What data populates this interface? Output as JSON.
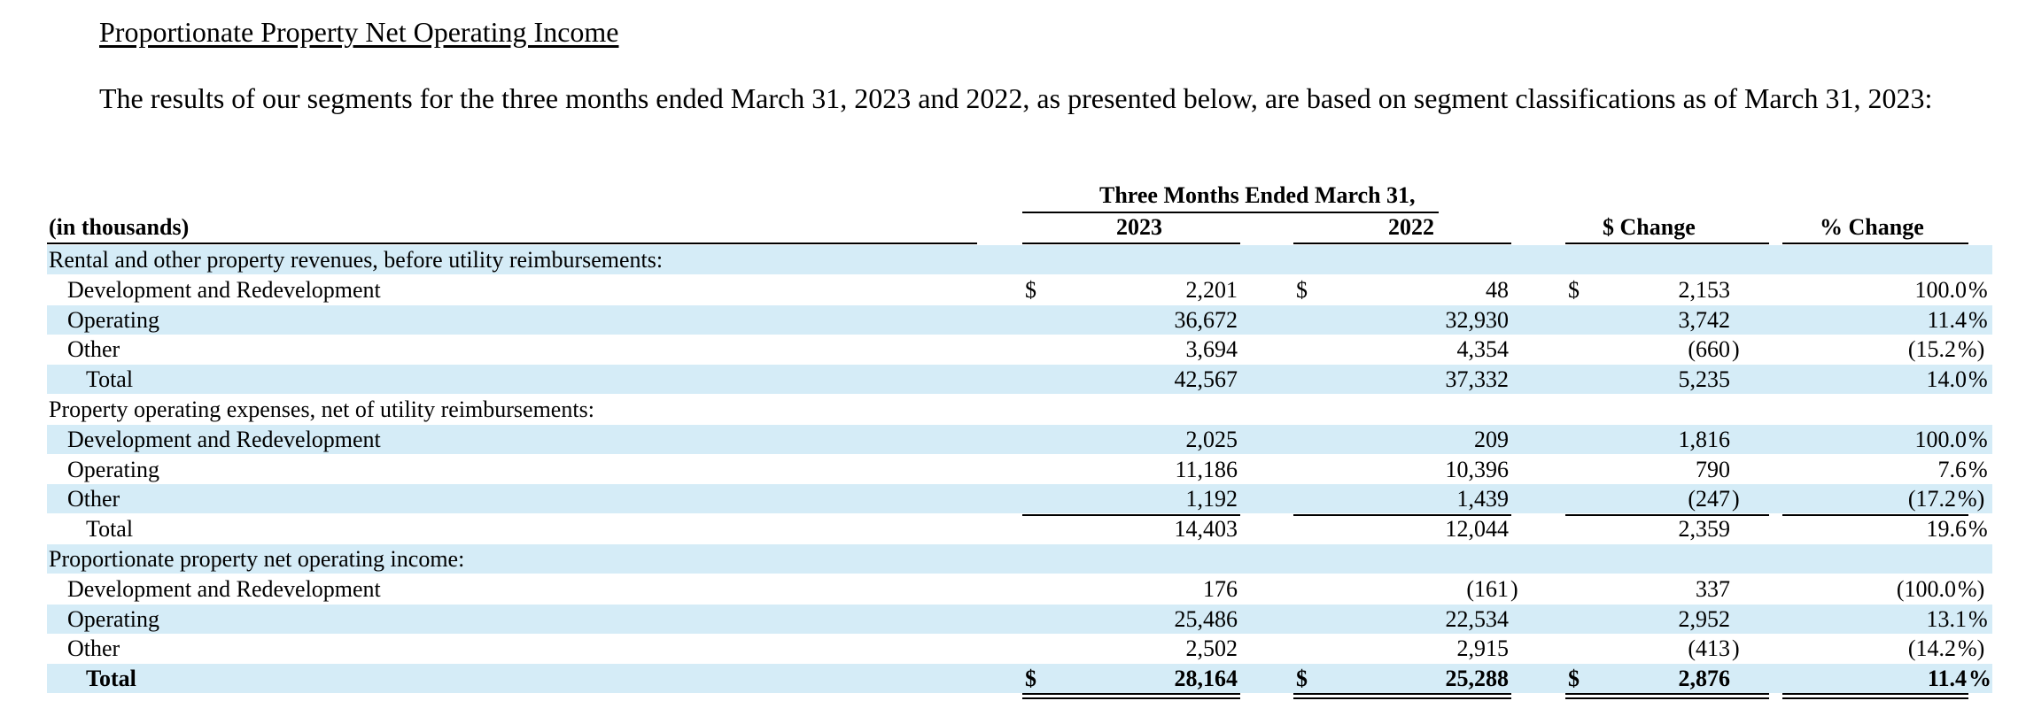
{
  "heading": "Proportionate Property Net Operating Income",
  "intro": "The results of our segments for the three months ended March 31, 2023 and 2022, as presented below, are based on segment classifications as of March 31, 2023:",
  "table": {
    "period_header": "Three Months Ended March 31,",
    "units_label": "(in thousands)",
    "col_2023": "2023",
    "col_2022": "2022",
    "col_dollar_change": "$ Change",
    "col_pct_change": "% Change",
    "currency_symbol": "$",
    "sections": [
      {
        "title": "Rental and other property revenues, before utility reimbursements:",
        "rows": [
          {
            "label": "Development and Redevelopment",
            "v2023": "2,201",
            "v2022": "48",
            "chg": "2,153",
            "pct": "100.0",
            "pct_sign": "%",
            "dollar": true
          },
          {
            "label": "Operating",
            "v2023": "36,672",
            "v2022": "32,930",
            "chg": "3,742",
            "pct": "11.4",
            "pct_sign": "%"
          },
          {
            "label": "Other",
            "v2023": "3,694",
            "v2022": "4,354",
            "chg": "(660",
            "chg_close": ")",
            "pct": "(15.2",
            "pct_sign": "%)"
          }
        ],
        "total": {
          "label": "Total",
          "v2023": "42,567",
          "v2022": "37,332",
          "chg": "5,235",
          "pct": "14.0",
          "pct_sign": "%"
        }
      },
      {
        "title": "Property operating expenses, net of utility reimbursements:",
        "rows": [
          {
            "label": "Development and Redevelopment",
            "v2023": "2,025",
            "v2022": "209",
            "chg": "1,816",
            "pct": "100.0",
            "pct_sign": "%"
          },
          {
            "label": "Operating",
            "v2023": "11,186",
            "v2022": "10,396",
            "chg": "790",
            "pct": "7.6",
            "pct_sign": "%"
          },
          {
            "label": "Other",
            "v2023": "1,192",
            "v2022": "1,439",
            "chg": "(247",
            "chg_close": ")",
            "pct": "(17.2",
            "pct_sign": "%)"
          }
        ],
        "total": {
          "label": "Total",
          "v2023": "14,403",
          "v2022": "12,044",
          "chg": "2,359",
          "pct": "19.6",
          "pct_sign": "%"
        }
      },
      {
        "title": "Proportionate property net operating income:",
        "rows": [
          {
            "label": "Development and Redevelopment",
            "v2023": "176",
            "v2022": "(161",
            "v2022_close": ")",
            "chg": "337",
            "pct": "(100.0",
            "pct_sign": "%)"
          },
          {
            "label": "Operating",
            "v2023": "25,486",
            "v2022": "22,534",
            "chg": "2,952",
            "pct": "13.1",
            "pct_sign": "%"
          },
          {
            "label": "Other",
            "v2023": "2,502",
            "v2022": "2,915",
            "chg": "(413",
            "chg_close": ")",
            "pct": "(14.2",
            "pct_sign": "%)"
          }
        ],
        "total": {
          "label": "Total",
          "v2023": "28,164",
          "v2022": "25,288",
          "chg": "2,876",
          "pct": "11.4",
          "pct_sign": "%",
          "dollar": true,
          "bold": true
        }
      }
    ]
  }
}
